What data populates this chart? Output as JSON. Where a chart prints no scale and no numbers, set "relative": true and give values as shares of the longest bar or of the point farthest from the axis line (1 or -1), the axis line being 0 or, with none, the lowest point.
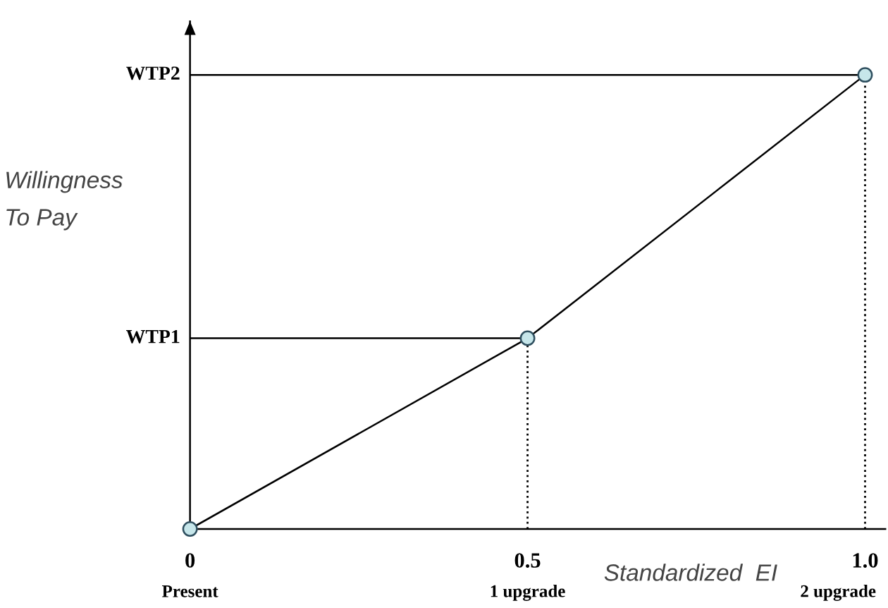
{
  "chart_data": {
    "type": "line",
    "relative": true,
    "xlabel": "Standardized  EI",
    "ylabel": "Willingness\nTo Pay",
    "x": [
      0,
      0.5,
      1.0
    ],
    "series": [
      {
        "color": "#000000",
        "values": [
          0,
          0.42,
          1
        ]
      }
    ],
    "xlim": [
      0,
      1.03
    ],
    "xticks": [
      0,
      0.5,
      {
        "value": 1.0,
        "label": "1.0"
      }
    ],
    "marker": "circle",
    "ref_lines": [
      {
        "axis": "y",
        "value": 0.42,
        "line_style": "solid",
        "color": "#000000",
        "label": "WTP1"
      },
      {
        "axis": "y",
        "value": 1,
        "line_style": "solid",
        "color": "#000000",
        "label": "WTP2"
      },
      {
        "axis": "x",
        "value": 0.5,
        "line_style": "dotted",
        "color": "#000000"
      },
      {
        "axis": "x",
        "value": 1.0,
        "line_style": "dotted",
        "color": "#000000"
      }
    ],
    "annotations": [
      "Present",
      "1 upgrade",
      "2 upgrade"
    ]
  }
}
